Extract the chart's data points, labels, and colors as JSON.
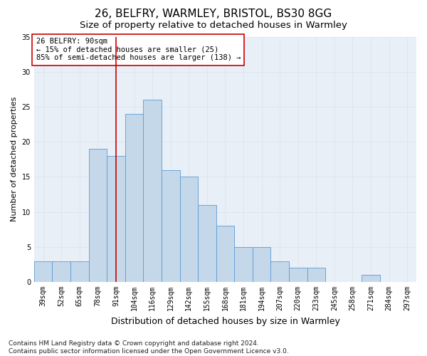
{
  "title1": "26, BELFRY, WARMLEY, BRISTOL, BS30 8GG",
  "title2": "Size of property relative to detached houses in Warmley",
  "xlabel": "Distribution of detached houses by size in Warmley",
  "ylabel": "Number of detached properties",
  "bar_labels": [
    "39sqm",
    "52sqm",
    "65sqm",
    "78sqm",
    "91sqm",
    "104sqm",
    "116sqm",
    "129sqm",
    "142sqm",
    "155sqm",
    "168sqm",
    "181sqm",
    "194sqm",
    "207sqm",
    "220sqm",
    "233sqm",
    "245sqm",
    "258sqm",
    "271sqm",
    "284sqm",
    "297sqm"
  ],
  "bar_values": [
    3,
    3,
    3,
    19,
    18,
    24,
    26,
    16,
    15,
    11,
    8,
    5,
    5,
    3,
    2,
    2,
    0,
    0,
    1,
    0,
    0
  ],
  "bar_color": "#c5d8ea",
  "bar_edge_color": "#5b9bd5",
  "grid_color": "#dce6f1",
  "background_color": "#e8eff7",
  "vline_x_index": 4,
  "vline_color": "#cc0000",
  "annotation_text": "26 BELFRY: 90sqm\n← 15% of detached houses are smaller (25)\n85% of semi-detached houses are larger (138) →",
  "annotation_box_color": "#ffffff",
  "annotation_box_edge": "#cc0000",
  "ylim": [
    0,
    35
  ],
  "yticks": [
    0,
    5,
    10,
    15,
    20,
    25,
    30,
    35
  ],
  "footnote": "Contains HM Land Registry data © Crown copyright and database right 2024.\nContains public sector information licensed under the Open Government Licence v3.0.",
  "title1_fontsize": 11,
  "title2_fontsize": 9.5,
  "xlabel_fontsize": 9,
  "ylabel_fontsize": 8,
  "tick_fontsize": 7,
  "annotation_fontsize": 7.5,
  "footnote_fontsize": 6.5
}
